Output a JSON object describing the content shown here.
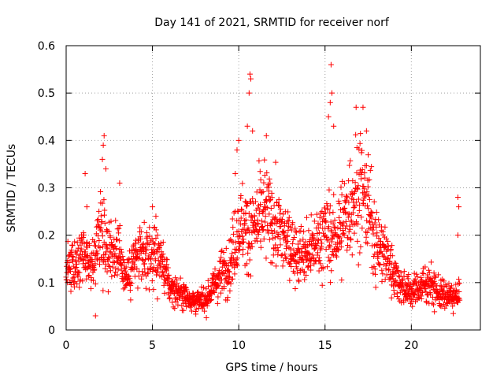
{
  "chart_data": {
    "type": "scatter",
    "title": "Day 141 of 2021, SRMTID for receiver norf",
    "xlabel": "GPS time / hours",
    "ylabel": "SRMTID / TECUs",
    "xlim": [
      0,
      24
    ],
    "ylim": [
      0,
      0.6
    ],
    "xticks": [
      0,
      5,
      10,
      15,
      20
    ],
    "xtick_labels": [
      "0",
      "5",
      "10",
      "15",
      "20"
    ],
    "yticks": [
      0,
      0.1,
      0.2,
      0.3,
      0.4,
      0.5,
      0.6
    ],
    "ytick_labels": [
      "0",
      "0.1",
      "0.2",
      "0.3",
      "0.4",
      "0.5",
      "0.6"
    ],
    "grid": true,
    "marker": "+",
    "series": [
      {
        "name": "SRMTID",
        "color": "#ff0000",
        "envelope": {
          "x": [
            0,
            0.5,
            1,
            1.5,
            2,
            2.5,
            3,
            3.5,
            4,
            4.5,
            5,
            5.5,
            6,
            6.5,
            7,
            7.5,
            8,
            8.5,
            9,
            9.5,
            10,
            10.5,
            11,
            11.5,
            12,
            12.5,
            13,
            13.5,
            14,
            14.5,
            15,
            15.5,
            16,
            16.5,
            17,
            17.5,
            18,
            18.5,
            19,
            19.5,
            20,
            20.5,
            21,
            21.5,
            22,
            22.5,
            22.8
          ],
          "y": [
            0.13,
            0.13,
            0.15,
            0.13,
            0.22,
            0.17,
            0.17,
            0.11,
            0.15,
            0.15,
            0.16,
            0.15,
            0.09,
            0.08,
            0.07,
            0.06,
            0.06,
            0.09,
            0.12,
            0.14,
            0.22,
            0.21,
            0.22,
            0.25,
            0.23,
            0.2,
            0.18,
            0.16,
            0.16,
            0.18,
            0.21,
            0.19,
            0.22,
            0.27,
            0.3,
            0.26,
            0.18,
            0.16,
            0.12,
            0.09,
            0.08,
            0.09,
            0.1,
            0.08,
            0.07,
            0.07,
            0.07
          ]
        },
        "values": [
          [
            1.1,
            0.33
          ],
          [
            1.2,
            0.26
          ],
          [
            1.7,
            0.03
          ],
          [
            2.1,
            0.36
          ],
          [
            2.15,
            0.39
          ],
          [
            2.2,
            0.41
          ],
          [
            2.3,
            0.34
          ],
          [
            3.1,
            0.31
          ],
          [
            5.0,
            0.26
          ],
          [
            5.2,
            0.24
          ],
          [
            9.8,
            0.33
          ],
          [
            9.9,
            0.38
          ],
          [
            10.0,
            0.4
          ],
          [
            10.5,
            0.43
          ],
          [
            10.6,
            0.5
          ],
          [
            10.65,
            0.54
          ],
          [
            10.7,
            0.53
          ],
          [
            10.8,
            0.42
          ],
          [
            11.6,
            0.41
          ],
          [
            15.2,
            0.45
          ],
          [
            15.3,
            0.48
          ],
          [
            15.35,
            0.56
          ],
          [
            15.4,
            0.5
          ],
          [
            15.5,
            0.43
          ],
          [
            16.8,
            0.47
          ],
          [
            17.2,
            0.47
          ],
          [
            17.4,
            0.42
          ],
          [
            22.7,
            0.28
          ],
          [
            22.75,
            0.26
          ],
          [
            22.7,
            0.2
          ]
        ]
      }
    ]
  }
}
